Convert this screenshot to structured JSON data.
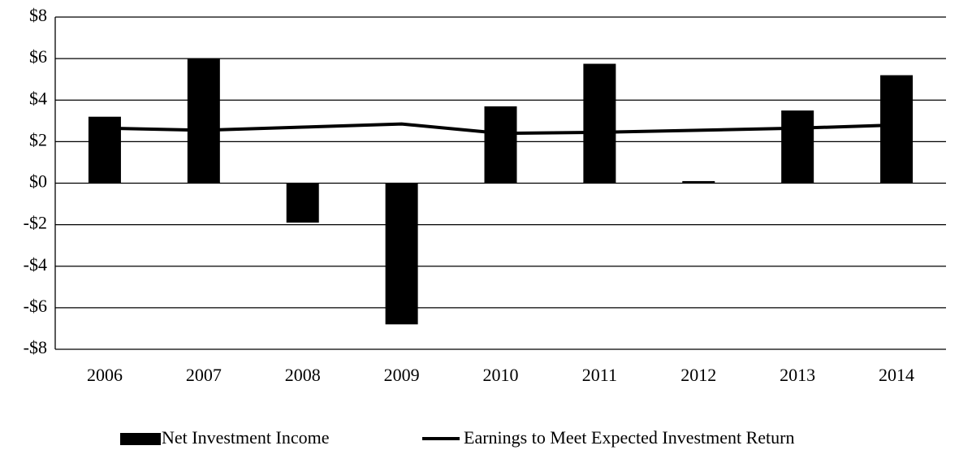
{
  "chart_data": {
    "type": "bar",
    "categories": [
      "2006",
      "2007",
      "2008",
      "2009",
      "2010",
      "2011",
      "2012",
      "2013",
      "2014"
    ],
    "series": [
      {
        "name": "Net Investment Income",
        "type": "bar",
        "color": "#000000",
        "values": [
          3.2,
          6.0,
          -1.9,
          -6.8,
          3.7,
          5.75,
          0.1,
          3.5,
          5.2
        ]
      },
      {
        "name": "Earnings to Meet Expected Investment Return",
        "type": "line",
        "color": "#000000",
        "values": [
          2.65,
          2.55,
          2.7,
          2.85,
          2.4,
          2.45,
          2.55,
          2.65,
          2.8
        ]
      }
    ],
    "ylim": [
      -8,
      8
    ],
    "yticks": [
      {
        "value": -8,
        "label": "-$8"
      },
      {
        "value": -6,
        "label": "-$6"
      },
      {
        "value": -4,
        "label": "-$4"
      },
      {
        "value": -2,
        "label": "-$2"
      },
      {
        "value": 0,
        "label": "$0"
      },
      {
        "value": 2,
        "label": "$2"
      },
      {
        "value": 4,
        "label": "$4"
      },
      {
        "value": 6,
        "label": "$6"
      },
      {
        "value": 8,
        "label": "$8"
      }
    ],
    "grid": true,
    "legend": "bottom"
  }
}
